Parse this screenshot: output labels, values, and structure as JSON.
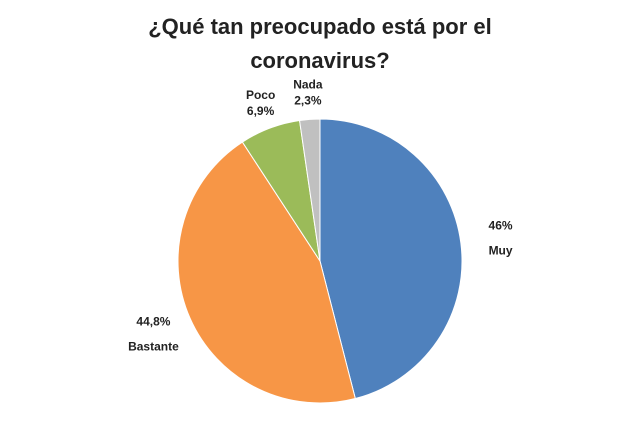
{
  "chart_data": {
    "type": "pie",
    "title": "¿Qué tan preocupado está por el coronavirus?",
    "categories": [
      "Muy",
      "Bastante",
      "Poco",
      "Nada"
    ],
    "values": [
      46,
      44.8,
      6.9,
      2.3
    ],
    "value_labels": [
      "46%",
      "44,8%",
      "6,9%",
      "2,3%"
    ],
    "colors": [
      "#4f81bd",
      "#f79646",
      "#9bbb59",
      "#c0c0c0"
    ]
  }
}
